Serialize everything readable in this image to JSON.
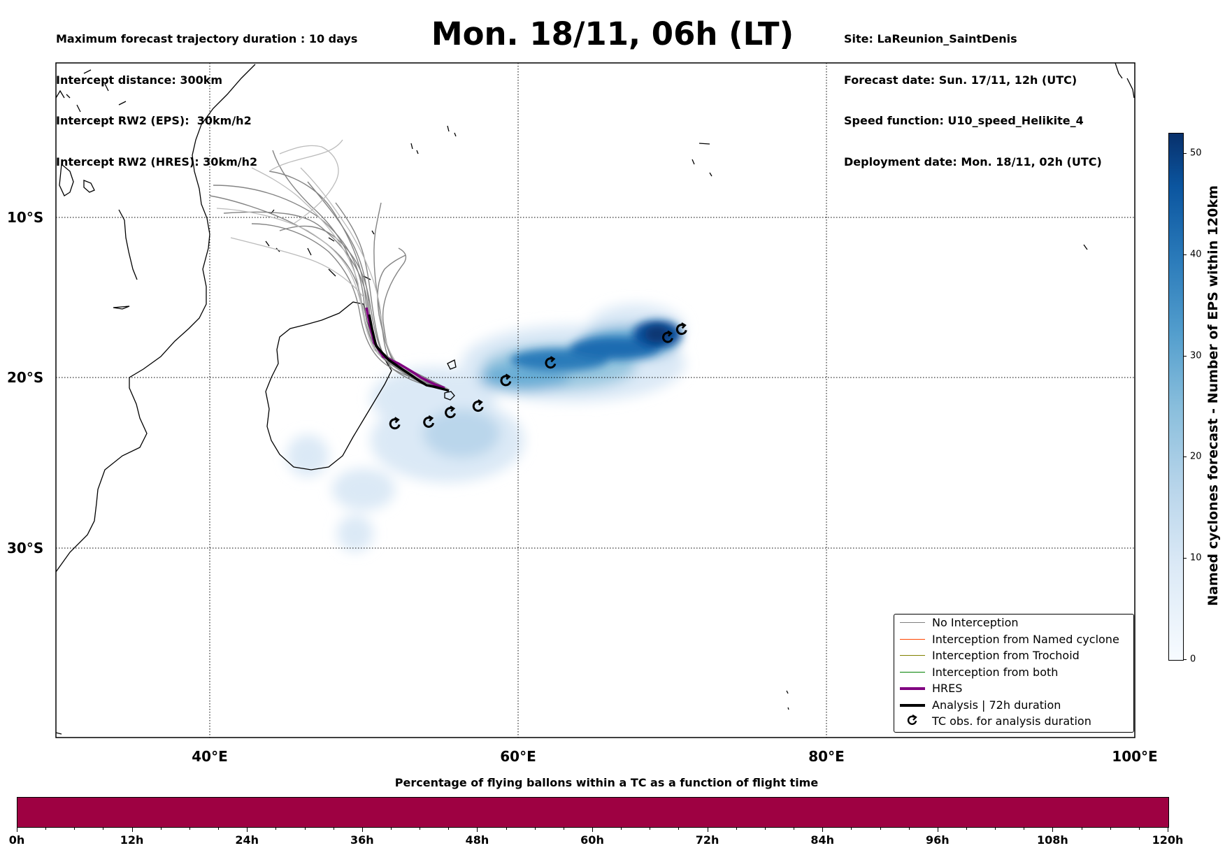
{
  "header": {
    "left_lines": [
      "Maximum forecast trajectory duration : 10 days",
      "Intercept distance: 300km",
      "Intercept RW2 (EPS):  30km/h2",
      "Intercept RW2 (HRES): 30km/h2"
    ],
    "title": "Mon. 18/11, 06h (LT)",
    "right_lines": [
      "Site: LaReunion_SaintDenis",
      "Forecast date: Sun. 17/11, 12h (UTC)",
      "Speed function: U10_speed_Helikite_4",
      "Deployment date: Mon. 18/11, 02h (UTC)"
    ]
  },
  "map": {
    "lon_labels": [
      "40°E",
      "60°E",
      "80°E",
      "100°E"
    ],
    "lat_labels": [
      "10°S",
      "20°S",
      "30°S"
    ],
    "lon_range": [
      30,
      100
    ],
    "lat_range": [
      -43,
      1
    ],
    "gridlines": true,
    "site": "La Reunion",
    "density_cmap": "Blues"
  },
  "legend": {
    "placement": "lower right",
    "items": [
      {
        "label": "No Interception",
        "color": "#808080",
        "style": "thin"
      },
      {
        "label": "Interception from Named cyclone",
        "color": "#ff4500",
        "style": "thin"
      },
      {
        "label": "Interception from Trochoid",
        "color": "#808000",
        "style": "thin"
      },
      {
        "label": "Interception from both",
        "color": "#008000",
        "style": "thin"
      },
      {
        "label": "HRES",
        "color": "#800080",
        "style": "thick"
      },
      {
        "label": "Analysis | 72h duration",
        "color": "#000000",
        "style": "thick"
      },
      {
        "label": "TC obs. for analysis duration",
        "color": "#000000",
        "style": "symbol"
      }
    ]
  },
  "colorbar": {
    "title": "Named cyclones forecast - Number of EPS within 120km",
    "ticks": [
      "0",
      "10",
      "20",
      "30",
      "40",
      "50"
    ],
    "range": [
      0,
      52
    ]
  },
  "flight_bar": {
    "title": "Percentage of flying ballons within a TC as a function of flight time",
    "ticks": [
      "0h",
      "12h",
      "24h",
      "36h",
      "48h",
      "60h",
      "72h",
      "84h",
      "96h",
      "108h",
      "120h"
    ],
    "color": "#9e0142"
  },
  "chart_data": {
    "type": "map",
    "title": "Mon. 18/11, 06h (LT)",
    "tc_observations": [
      [
        52.0,
        -22.9
      ],
      [
        54.2,
        -22.8
      ],
      [
        55.6,
        -22.2
      ],
      [
        57.4,
        -21.8
      ],
      [
        59.2,
        -20.2
      ],
      [
        62.1,
        -19.1
      ],
      [
        69.7,
        -17.5
      ],
      [
        70.6,
        -17.0
      ]
    ]
  }
}
